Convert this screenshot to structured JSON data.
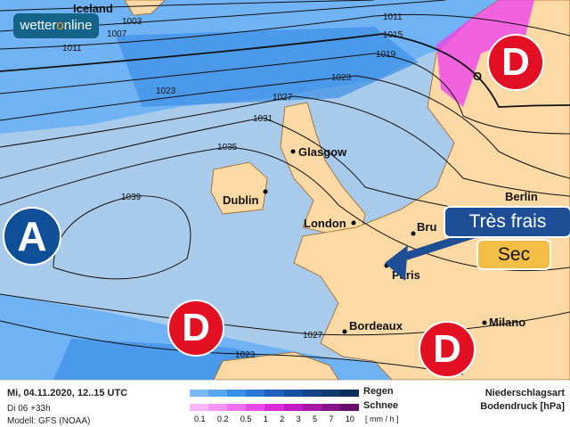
{
  "brand": {
    "logo_pre": "wetter",
    "logo_o": "o",
    "logo_post": "nline"
  },
  "cities": {
    "iceland": "Iceland",
    "glasgow": "Glasgow",
    "dublin": "Dublin",
    "london": "London",
    "bru": "Bru",
    "paris": "Paris",
    "bordeaux": "Bordeaux",
    "milano": "Milano",
    "berlin": "Berlin",
    "oslo": "O"
  },
  "isobars": [
    "1003",
    "1007",
    "1011",
    "1011",
    "1015",
    "1019",
    "1023",
    "1023",
    "1027",
    "1031",
    "1035",
    "1039",
    "1027",
    "1023"
  ],
  "pressure_systems": {
    "high": "A",
    "low": "D"
  },
  "callouts": {
    "temperature": "Très frais",
    "precip": "Sec"
  },
  "footer": {
    "datetime": "Mi, 04.11.2020, 12..15 UTC",
    "forecast": "Di 06 +33h",
    "model": "Modell: GFS (NOAA)",
    "rain": "Regen",
    "snow": "Schnee",
    "unit": "[ mm / h ]",
    "ticks": [
      "0.1",
      "0.2",
      "0.5",
      "1",
      "2",
      "3",
      "5",
      "7",
      "10"
    ],
    "type": "Niederschlagsart",
    "pressure": "Bodendruck [hPa]"
  },
  "colors": {
    "sea": "#a9cbeb",
    "rain_light": "#6fb3f5",
    "rain_mid": "#3a8ee6",
    "land": "#fcd9a5",
    "snow": "#ee44ee",
    "low": "#e30f22",
    "high": "#0e4f98",
    "callout_blue": "#1e4f96",
    "callout_yellow": "#f3be45"
  }
}
